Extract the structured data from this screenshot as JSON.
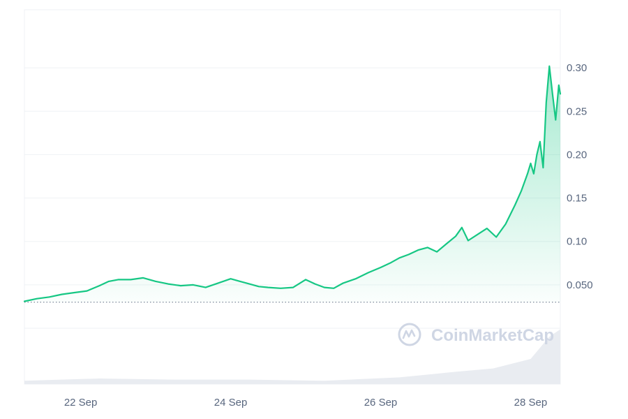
{
  "chart_data": {
    "type": "area",
    "title": "",
    "xlabel": "",
    "ylabel": "",
    "ylim": [
      0,
      0.35
    ],
    "y_ticks": [
      0.05,
      0.1,
      0.15,
      0.2,
      0.25,
      0.3
    ],
    "y_tick_labels": [
      "0.050",
      "0.10",
      "0.15",
      "0.20",
      "0.25",
      "0.30"
    ],
    "x_ticks": [
      "22 Sep",
      "24 Sep",
      "26 Sep",
      "28 Sep"
    ],
    "x_domain": [
      "2023-09-21 06:00",
      "2023-09-28 09:30"
    ],
    "grid": true,
    "reference_line": {
      "value": 0.03,
      "style": "dotted"
    },
    "series": [
      {
        "values": [
          [
            "2023-09-21 06:00",
            0.031
          ],
          [
            "2023-09-21 10:00",
            0.034
          ],
          [
            "2023-09-21 14:00",
            0.036
          ],
          [
            "2023-09-21 18:00",
            0.039
          ],
          [
            "2023-09-21 22:00",
            0.041
          ],
          [
            "2023-09-22 02:00",
            0.043
          ],
          [
            "2023-09-22 06:00",
            0.049
          ],
          [
            "2023-09-22 09:00",
            0.054
          ],
          [
            "2023-09-22 12:00",
            0.056
          ],
          [
            "2023-09-22 16:00",
            0.056
          ],
          [
            "2023-09-22 20:00",
            0.058
          ],
          [
            "2023-09-23 00:00",
            0.054
          ],
          [
            "2023-09-23 04:00",
            0.051
          ],
          [
            "2023-09-23 08:00",
            0.049
          ],
          [
            "2023-09-23 12:00",
            0.05
          ],
          [
            "2023-09-23 16:00",
            0.047
          ],
          [
            "2023-09-23 20:00",
            0.052
          ],
          [
            "2023-09-24 00:00",
            0.057
          ],
          [
            "2023-09-24 03:00",
            0.054
          ],
          [
            "2023-09-24 06:00",
            0.051
          ],
          [
            "2023-09-24 09:00",
            0.048
          ],
          [
            "2023-09-24 12:00",
            0.047
          ],
          [
            "2023-09-24 16:00",
            0.046
          ],
          [
            "2023-09-24 20:00",
            0.047
          ],
          [
            "2023-09-25 00:00",
            0.056
          ],
          [
            "2023-09-25 03:00",
            0.051
          ],
          [
            "2023-09-25 06:00",
            0.047
          ],
          [
            "2023-09-25 09:00",
            0.046
          ],
          [
            "2023-09-25 12:00",
            0.052
          ],
          [
            "2023-09-25 16:00",
            0.057
          ],
          [
            "2023-09-25 20:00",
            0.064
          ],
          [
            "2023-09-26 00:00",
            0.07
          ],
          [
            "2023-09-26 03:00",
            0.075
          ],
          [
            "2023-09-26 06:00",
            0.081
          ],
          [
            "2023-09-26 09:00",
            0.085
          ],
          [
            "2023-09-26 12:00",
            0.09
          ],
          [
            "2023-09-26 15:00",
            0.093
          ],
          [
            "2023-09-26 18:00",
            0.088
          ],
          [
            "2023-09-26 21:00",
            0.097
          ],
          [
            "2023-09-27 00:00",
            0.106
          ],
          [
            "2023-09-27 02:00",
            0.116
          ],
          [
            "2023-09-27 04:00",
            0.101
          ],
          [
            "2023-09-27 07:00",
            0.108
          ],
          [
            "2023-09-27 10:00",
            0.115
          ],
          [
            "2023-09-27 13:00",
            0.105
          ],
          [
            "2023-09-27 16:00",
            0.12
          ],
          [
            "2023-09-27 19:00",
            0.142
          ],
          [
            "2023-09-27 21:00",
            0.158
          ],
          [
            "2023-09-27 23:00",
            0.178
          ],
          [
            "2023-09-28 00:00",
            0.19
          ],
          [
            "2023-09-28 01:00",
            0.178
          ],
          [
            "2023-09-28 02:00",
            0.2
          ],
          [
            "2023-09-28 03:00",
            0.215
          ],
          [
            "2023-09-28 04:00",
            0.185
          ],
          [
            "2023-09-28 05:00",
            0.26
          ],
          [
            "2023-09-28 06:00",
            0.302
          ],
          [
            "2023-09-28 07:00",
            0.27
          ],
          [
            "2023-09-28 08:00",
            0.24
          ],
          [
            "2023-09-28 09:00",
            0.28
          ],
          [
            "2023-09-28 09:30",
            0.27
          ]
        ]
      }
    ],
    "volume": {
      "values": [
        [
          "2023-09-21 06:00",
          0.06
        ],
        [
          "2023-09-22 06:00",
          0.1
        ],
        [
          "2023-09-23 06:00",
          0.08
        ],
        [
          "2023-09-24 06:00",
          0.08
        ],
        [
          "2023-09-25 06:00",
          0.06
        ],
        [
          "2023-09-26 06:00",
          0.12
        ],
        [
          "2023-09-27 00:00",
          0.22
        ],
        [
          "2023-09-27 12:00",
          0.28
        ],
        [
          "2023-09-28 00:00",
          0.45
        ],
        [
          "2023-09-28 06:00",
          0.85
        ],
        [
          "2023-09-28 09:30",
          0.98
        ]
      ]
    },
    "colors": {
      "line": "#16c784",
      "grid": "#eff2f5",
      "volume": "#e9ecf1",
      "reference": "#58667e"
    },
    "watermark": {
      "text": "CoinMarketCap",
      "icon": "coinmarketcap-logo-icon"
    }
  }
}
